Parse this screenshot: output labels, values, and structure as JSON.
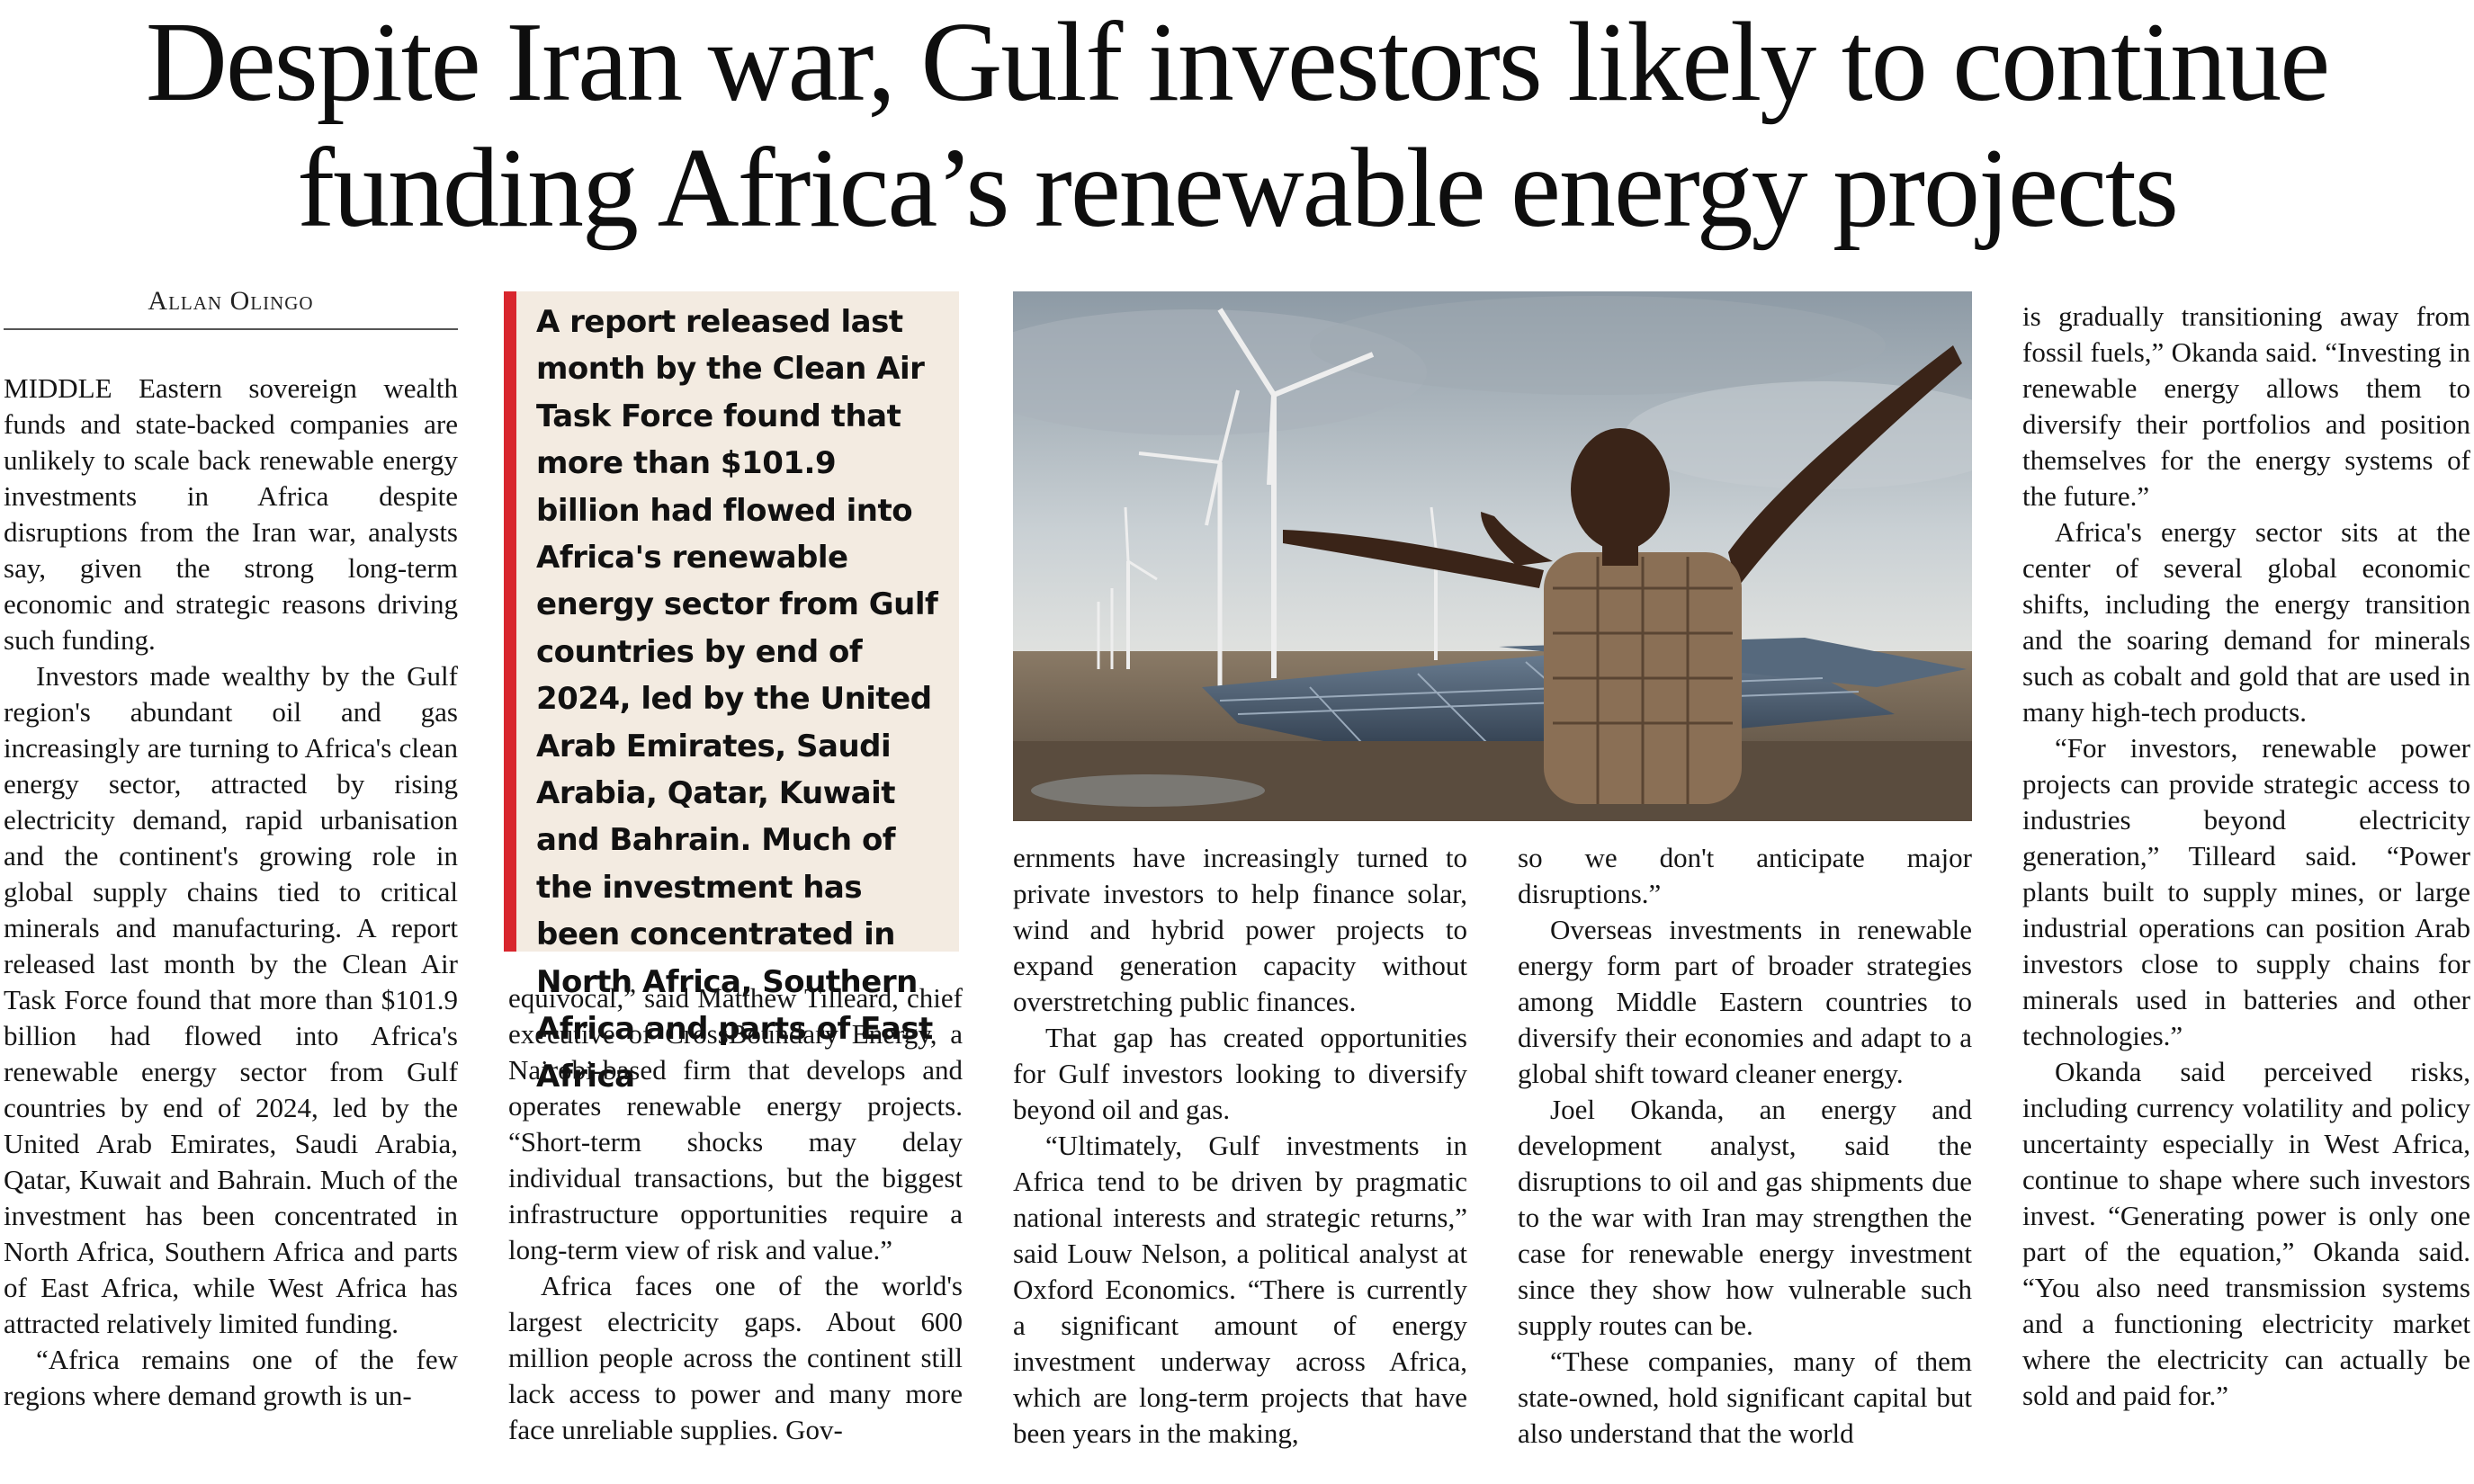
{
  "article": {
    "headline_line1": "Despite Iran war, Gulf investors likely to continue",
    "headline_line2": "funding Africa’s renewable energy projects",
    "byline": "Allan Olingo",
    "pullquote": "A report released last month by the Clean Air Task Force found that more than $101.9 billion had flowed into Africa's renewable energy sector from Gulf countries by end of 2024, led by the United Arab Emirates, Saudi Arabia, Qatar, Kuwait and Bahrain. Much of the investment has been concentrated in North Africa, Southern Africa and parts of East Africa",
    "photo_alt": "Boy with outstretched arms in front of solar panels and wind turbines",
    "columns": {
      "col1": [
        "MIDDLE Eastern sovereign wealth funds and state-backed companies are unlikely to scale back renewable energy investments in Africa despite disruptions from the Iran war, analysts say, given the strong long-term economic and strategic reasons driving such funding.",
        "Investors made wealthy by the Gulf region's abundant oil and gas increasingly are turning to Africa's clean energy sector, attracted by rising electricity demand, rapid urbanisation and the continent's growing role in global supply chains tied to critical minerals and manufacturing. A report released last month by the Clean Air Task Force found that more than $101.9 billion had flowed into Africa's renewable energy sector from Gulf countries by end of 2024, led by the United Arab Emirates, Saudi Arabia, Qatar, Kuwait and Bahrain. Much of the investment has been concentrated in North Africa, Southern Africa and parts of East Africa, while West Africa has attracted relatively limited funding.",
        "“Africa remains one of the few regions where demand growth is un-"
      ],
      "col2": [
        "equivocal,” said Matthew Tilleard, chief executive of CrossBoundary Energy, a Nairobi-based firm that develops and operates renewable energy projects. “Short-term shocks may delay individual transactions, but the biggest infrastructure opportunities require a long-term view of risk and value.”",
        "Africa faces one of the world's largest electricity gaps. About 600 million people across the continent still lack access to power and many more face unreliable supplies. Gov-"
      ],
      "col3": [
        "ernments have increasingly turned to private investors to help finance solar, wind and hybrid power projects to expand generation capacity without overstretching public finances.",
        "That gap has created opportunities for Gulf investors looking to diversify beyond oil and gas.",
        "“Ultimately, Gulf investments in Africa tend to be driven by pragmatic national interests and strategic returns,” said Louw Nelson, a political analyst at Oxford Economics. “There is currently a significant amount of energy investment underway across Africa, which are long-term projects that have been years in the making,"
      ],
      "col4": [
        "so we don't anticipate major disruptions.”",
        "Overseas investments in renewable energy form part of broader strategies among Middle Eastern countries to diversify their economies and adapt to a global shift toward cleaner energy.",
        "Joel Okanda, an energy and development analyst, said the disruptions to oil and gas shipments due to the war with Iran may strengthen the case for renewable energy investment since they show how vulnerable such supply routes can be.",
        "“These companies, many of them state-owned, hold significant capital but also understand that the world"
      ],
      "col5": [
        "is gradually transitioning away from fossil fuels,” Okanda said. “Investing in renewable energy allows them to diversify their portfolios and position themselves for the energy systems of the future.”",
        "Africa's energy sector sits at the center of several global economic shifts, including the energy transition and the soaring demand for minerals such as cobalt and gold that are used in many high-tech products.",
        "“For investors, renewable power projects can provide strategic access to industries beyond electricity generation,” Tilleard said. “Power plants built to supply mines, or large industrial operations can position Arab investors close to supply chains for minerals used in batteries and other technologies.”",
        "Okanda said perceived risks, including currency volatility and policy uncertainty especially in West Africa, continue to shape where such investors invest. “Generating power is only one part of the equation,” Okanda said. “You also need transmission systems and a functioning electricity market where the electricity can actually be sold and paid for.”"
      ]
    }
  },
  "colors": {
    "accent_bar": "#d8262d",
    "pullquote_bg": "#f3ebe1",
    "ink": "#141414"
  }
}
